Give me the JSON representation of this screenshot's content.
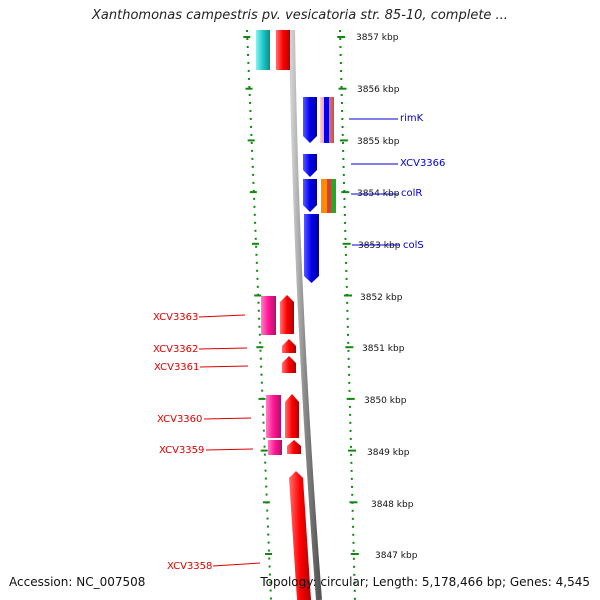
{
  "title": "Xanthomonas campestris pv. vesicatoria str. 85-10, complete ...",
  "accession": "Accession: NC_007508",
  "topology": "Topology: circular; Length: 5,178,466 bp; Genes: 4,545",
  "scale_ticks": [
    "3857 kbp",
    "3856 kbp",
    "3855 kbp",
    "3854 kbp",
    "3853 kbp",
    "3852 kbp",
    "3851 kbp",
    "3850 kbp",
    "3849 kbp",
    "3848 kbp",
    "3847 kbp"
  ],
  "gene_labels_right": [
    "rimK",
    "XCV3366",
    "colR",
    "colS"
  ],
  "gene_labels_left": [
    "XCV3363",
    "XCV3362",
    "XCV3361",
    "XCV3360",
    "XCV3359",
    "XCV3358"
  ],
  "colors": {
    "forward_strand": "#ff0000",
    "reverse_strand": "#0000ee",
    "label_forward": "#dd0000",
    "label_reverse": "#0000cc",
    "tick": "#118811",
    "backbone": "#888888"
  }
}
